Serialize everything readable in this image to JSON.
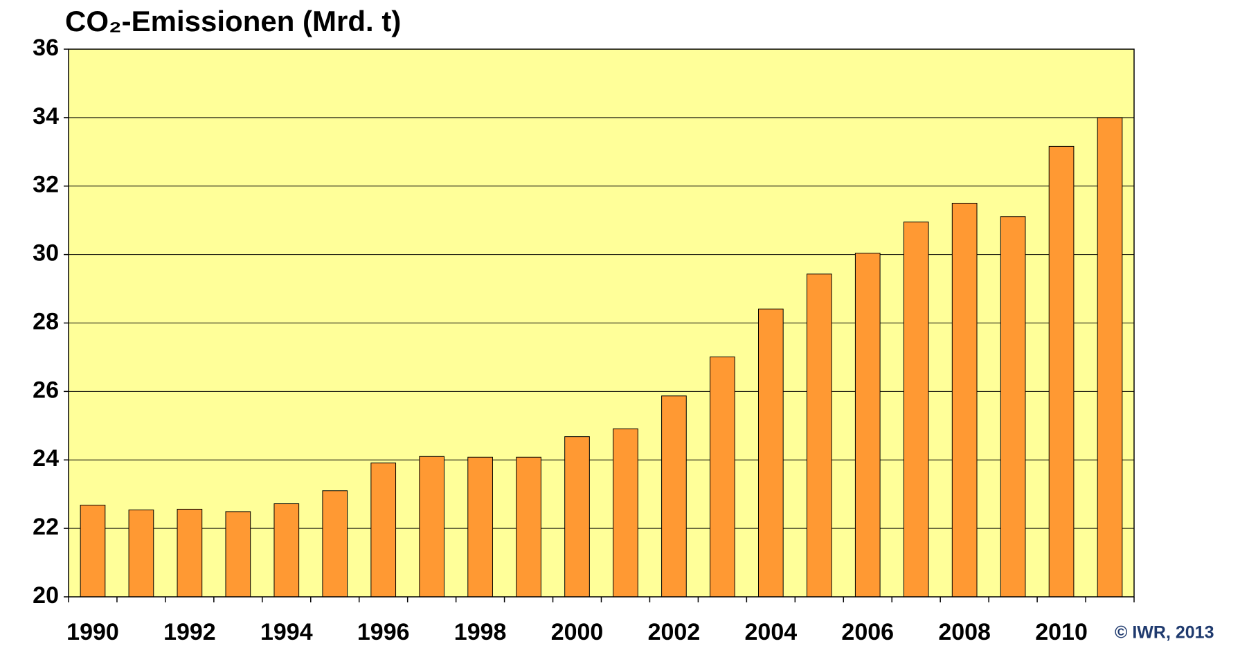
{
  "chart_data": {
    "type": "bar",
    "title": "CO₂-Emissionen (Mrd. t)",
    "source": "© IWR, 2013",
    "categories": [
      "1990",
      null,
      "1992",
      null,
      "1994",
      null,
      "1996",
      null,
      "1998",
      null,
      "2000",
      null,
      "2002",
      null,
      "2004",
      null,
      "2006",
      null,
      "2008",
      null,
      "2010",
      null
    ],
    "values": [
      22.68,
      22.54,
      22.56,
      22.49,
      22.72,
      23.1,
      23.91,
      24.1,
      24.08,
      24.08,
      24.68,
      24.91,
      25.87,
      27.01,
      28.41,
      29.43,
      30.04,
      30.95,
      31.5,
      31.11,
      33.16,
      34.0
    ],
    "color": "#ff9933",
    "background": "#ffff99",
    "ylim": [
      20,
      36
    ],
    "yticks": [
      20,
      22,
      24,
      26,
      28,
      30,
      32,
      34,
      36
    ],
    "grid": true
  }
}
